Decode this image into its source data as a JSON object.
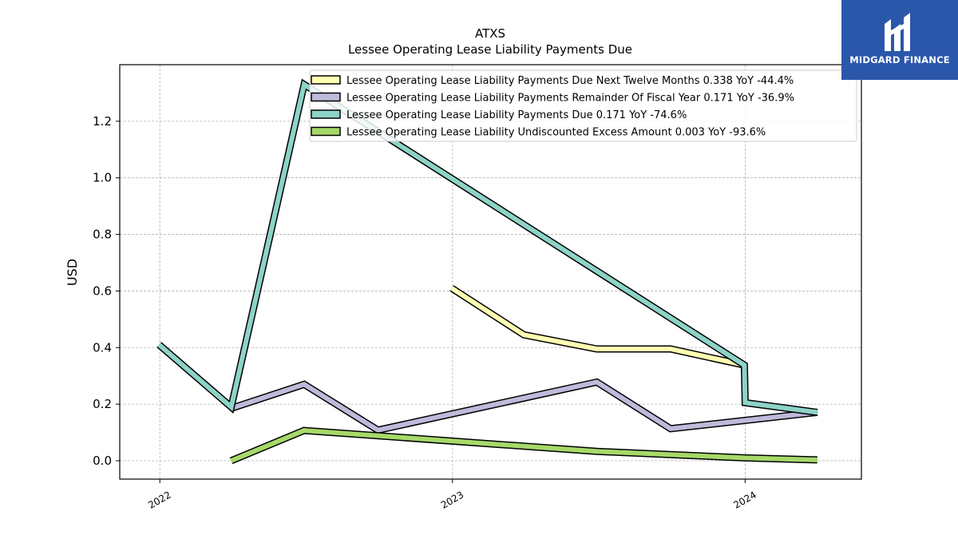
{
  "chart_data": {
    "type": "line",
    "title": "ATXS",
    "subtitle": "Lessee Operating Lease Liability Payments Due",
    "xlabel": "",
    "ylabel": "USD",
    "x_ticks": [
      "2022",
      "2023",
      "2024"
    ],
    "y_ticks": [
      "0.0",
      "0.2",
      "0.4",
      "0.6",
      "0.8",
      "1.0",
      "1.2"
    ],
    "xlim": [
      "2021-11-12",
      "2024-05-25"
    ],
    "ylim": [
      -0.065,
      1.4
    ],
    "grid": true,
    "legend_position": "top-right",
    "series": [
      {
        "name": "Lessee Operating Lease Liability Payments Due Next Twelve Months  0.338 YoY -44.4%",
        "color": "#ffffb3",
        "points": [
          {
            "x": "2022-12-31",
            "y": 0.61
          },
          {
            "x": "2023-03-31",
            "y": 0.445
          },
          {
            "x": "2023-06-30",
            "y": 0.395
          },
          {
            "x": "2023-09-30",
            "y": 0.395
          },
          {
            "x": "2023-12-31",
            "y": 0.338
          }
        ]
      },
      {
        "name": "Lessee Operating Lease Liability Payments Remainder Of Fiscal Year  0.171 YoY -36.9%",
        "color": "#bebada",
        "points": [
          {
            "x": "2022-03-31",
            "y": 0.185
          },
          {
            "x": "2022-06-30",
            "y": 0.27
          },
          {
            "x": "2022-09-30",
            "y": 0.108
          },
          {
            "x": "2023-06-30",
            "y": 0.278
          },
          {
            "x": "2023-09-30",
            "y": 0.113
          },
          {
            "x": "2024-03-31",
            "y": 0.171
          }
        ]
      },
      {
        "name": "Lessee Operating Lease Liability Payments Due  0.171 YoY -74.6%",
        "color": "#8dd3c7",
        "points": [
          {
            "x": "2021-12-31",
            "y": 0.41
          },
          {
            "x": "2022-03-31",
            "y": 0.19
          },
          {
            "x": "2022-06-30",
            "y": 1.33
          },
          {
            "x": "2023-12-31",
            "y": 0.338
          },
          {
            "x": "2024-01-01",
            "y": 0.205
          },
          {
            "x": "2024-03-31",
            "y": 0.171
          }
        ]
      },
      {
        "name": "Lessee Operating Lease Liability Undiscounted Excess Amount  0.003 YoY -93.6%",
        "color": "#a6d96a",
        "points": [
          {
            "x": "2022-03-31",
            "y": 0.0
          },
          {
            "x": "2022-06-30",
            "y": 0.107
          },
          {
            "x": "2023-06-30",
            "y": 0.033
          },
          {
            "x": "2023-12-31",
            "y": 0.01
          },
          {
            "x": "2024-03-31",
            "y": 0.003
          }
        ]
      }
    ]
  },
  "logo": {
    "text": "MIDGARD FINANCE",
    "background": "#2b57ab"
  }
}
